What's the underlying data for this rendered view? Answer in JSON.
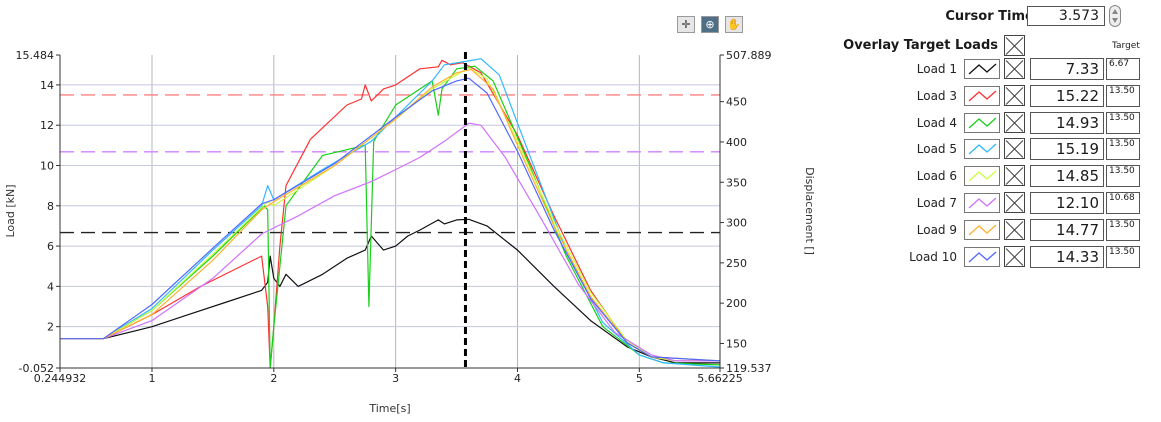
{
  "toolbar": {
    "items": [
      {
        "name": "cursor-move-tool-icon",
        "glyph": "✛"
      },
      {
        "name": "zoom-tool-icon",
        "glyph": "⊕"
      },
      {
        "name": "pan-hand-tool-icon",
        "glyph": "✋"
      }
    ]
  },
  "panel": {
    "cursor_time_label": "Cursor Time (s)",
    "cursor_time_value": "3.573",
    "overlay_label": "Overlay Target Loads",
    "target_header": "Target",
    "rows": [
      {
        "label": "Load 1",
        "value": "7.33",
        "target": "6.67",
        "color": "#111111"
      },
      {
        "label": "Load 3",
        "value": "15.22",
        "target": "13.50",
        "color": "#ff3030"
      },
      {
        "label": "Load 4",
        "value": "14.93",
        "target": "13.50",
        "color": "#18d018"
      },
      {
        "label": "Load 5",
        "value": "15.19",
        "target": "13.50",
        "color": "#30b8ff"
      },
      {
        "label": "Load 6",
        "value": "14.85",
        "target": "13.50",
        "color": "#c8ff40"
      },
      {
        "label": "Load 7",
        "value": "12.10",
        "target": "10.68",
        "color": "#d070ff"
      },
      {
        "label": "Load 9",
        "value": "14.77",
        "target": "13.50",
        "color": "#ffb030"
      },
      {
        "label": "Load 10",
        "value": "14.33",
        "target": "13.50",
        "color": "#5068ff"
      }
    ]
  },
  "chart_data": {
    "type": "line",
    "xlabel": "Time[s]",
    "ylabel": "Load [kN]",
    "y2label": "Displacement []",
    "xlim": [
      0.244932,
      5.66225
    ],
    "ylim": [
      -0.052,
      15.484
    ],
    "y2lim": [
      119.537,
      507.889
    ],
    "x_tick_labels": [
      "0.244932",
      "1",
      "2",
      "3",
      "4",
      "5",
      "5.66225"
    ],
    "x_ticks": [
      0.244932,
      1,
      2,
      3,
      4,
      5,
      5.66225
    ],
    "y_tick_labels": [
      "-0.052",
      "2",
      "4",
      "6",
      "8",
      "10",
      "12",
      "14",
      "15.484"
    ],
    "y_ticks": [
      -0.052,
      2,
      4,
      6,
      8,
      10,
      12,
      14,
      15.484
    ],
    "y2_tick_labels": [
      "119.537",
      "150",
      "200",
      "250",
      "300",
      "350",
      "400",
      "450",
      "507.889"
    ],
    "y2_ticks": [
      119.537,
      150,
      200,
      250,
      300,
      350,
      400,
      450,
      507.889
    ],
    "grid": true,
    "cursor_x": 3.573,
    "target_lines": [
      {
        "y": 6.67,
        "color": "#222222"
      },
      {
        "y": 10.68,
        "color": "#d080ff"
      },
      {
        "y": 13.5,
        "color": "#ff8080"
      }
    ],
    "series": [
      {
        "color": "#111111",
        "x": [
          0.245,
          0.6,
          1.0,
          1.3,
          1.6,
          1.9,
          1.95,
          1.97,
          2.0,
          2.05,
          2.1,
          2.2,
          2.4,
          2.6,
          2.75,
          2.8,
          2.9,
          3.0,
          3.1,
          3.2,
          3.35,
          3.4,
          3.5,
          3.6,
          3.75,
          4.0,
          4.3,
          4.6,
          4.9,
          5.1,
          5.3,
          5.66
        ],
        "y": [
          1.4,
          1.4,
          2.0,
          2.6,
          3.2,
          3.8,
          4.2,
          5.5,
          4.4,
          4.0,
          4.6,
          4.0,
          4.6,
          5.4,
          5.8,
          6.5,
          5.8,
          6.0,
          6.5,
          6.8,
          7.3,
          7.1,
          7.3,
          7.33,
          7.0,
          5.8,
          4.0,
          2.3,
          1.0,
          0.5,
          0.2,
          0.2
        ]
      },
      {
        "color": "#ff3030",
        "x": [
          0.245,
          0.6,
          1.0,
          1.4,
          1.9,
          1.95,
          1.97,
          2.0,
          2.05,
          2.1,
          2.3,
          2.6,
          2.72,
          2.75,
          2.8,
          2.9,
          3.0,
          3.2,
          3.35,
          3.38,
          3.45,
          3.55,
          3.7,
          4.0,
          4.3,
          4.6,
          4.9,
          5.1,
          5.3,
          5.66
        ],
        "y": [
          1.4,
          1.4,
          2.6,
          4.0,
          5.5,
          3.0,
          -0.05,
          2.0,
          6.0,
          9.0,
          11.3,
          13.0,
          13.3,
          14.0,
          13.2,
          13.8,
          14.0,
          14.8,
          14.9,
          15.22,
          15.0,
          15.1,
          14.6,
          11.5,
          7.5,
          3.8,
          1.2,
          0.5,
          0.3,
          0.3
        ]
      },
      {
        "color": "#18d018",
        "x": [
          0.245,
          0.6,
          1.0,
          1.5,
          1.92,
          1.95,
          1.97,
          2.0,
          2.1,
          2.4,
          2.75,
          2.78,
          2.82,
          3.0,
          3.3,
          3.35,
          3.38,
          3.5,
          3.65,
          3.8,
          4.1,
          4.4,
          4.7,
          5.0,
          5.2,
          5.66
        ],
        "y": [
          1.4,
          1.4,
          2.8,
          5.5,
          8.0,
          7.8,
          -0.05,
          2.0,
          8.0,
          10.5,
          11.0,
          3.0,
          11.2,
          13.0,
          14.2,
          12.5,
          13.8,
          14.8,
          14.93,
          14.2,
          10.0,
          5.5,
          2.0,
          0.6,
          0.2,
          0.1
        ]
      },
      {
        "color": "#30b8ff",
        "x": [
          0.245,
          0.6,
          1.0,
          1.5,
          1.9,
          1.95,
          2.0,
          2.4,
          2.8,
          3.0,
          3.2,
          3.3,
          3.4,
          3.6,
          3.7,
          3.85,
          4.1,
          4.4,
          4.7,
          5.0,
          5.2,
          5.66
        ],
        "y": [
          1.4,
          1.4,
          2.9,
          5.8,
          8.0,
          9.0,
          8.3,
          9.8,
          11.2,
          12.4,
          13.6,
          14.2,
          15.0,
          15.19,
          15.3,
          14.5,
          10.5,
          5.8,
          2.2,
          0.6,
          0.2,
          0.0
        ]
      },
      {
        "color": "#c8ff40",
        "x": [
          0.245,
          0.6,
          1.0,
          1.5,
          1.95,
          2.0,
          2.5,
          3.0,
          3.3,
          3.5,
          3.6,
          3.75,
          4.0,
          4.3,
          4.6,
          4.9,
          5.1,
          5.3,
          5.66
        ],
        "y": [
          1.4,
          1.4,
          2.8,
          5.6,
          8.2,
          8.0,
          10.0,
          12.3,
          13.8,
          14.5,
          14.85,
          14.3,
          11.2,
          7.2,
          3.7,
          1.3,
          0.5,
          0.3,
          0.3
        ]
      },
      {
        "color": "#d070ff",
        "x": [
          0.245,
          0.6,
          1.0,
          1.5,
          1.9,
          2.0,
          2.2,
          2.5,
          2.8,
          3.0,
          3.2,
          3.4,
          3.6,
          3.7,
          3.9,
          4.2,
          4.5,
          4.8,
          5.1,
          5.3,
          5.66
        ],
        "y": [
          1.4,
          1.4,
          2.3,
          4.4,
          6.6,
          6.9,
          7.5,
          8.5,
          9.2,
          9.8,
          10.4,
          11.2,
          12.1,
          12.0,
          10.4,
          7.3,
          4.1,
          1.7,
          0.6,
          0.3,
          0.3
        ]
      },
      {
        "color": "#ffb030",
        "x": [
          0.245,
          0.6,
          1.0,
          1.5,
          1.9,
          2.0,
          2.5,
          3.0,
          3.3,
          3.5,
          3.62,
          3.8,
          4.0,
          4.3,
          4.6,
          4.9,
          5.1,
          5.66
        ],
        "y": [
          1.4,
          1.4,
          2.6,
          5.3,
          7.8,
          8.2,
          10.0,
          12.3,
          13.9,
          14.6,
          14.77,
          13.8,
          11.0,
          7.0,
          3.5,
          1.2,
          0.5,
          0.3
        ]
      },
      {
        "color": "#5068ff",
        "x": [
          0.245,
          0.6,
          1.0,
          1.5,
          1.9,
          2.0,
          2.5,
          3.0,
          3.3,
          3.5,
          3.6,
          3.75,
          4.0,
          4.3,
          4.6,
          4.9,
          5.1,
          5.66
        ],
        "y": [
          1.4,
          1.4,
          3.1,
          5.9,
          8.1,
          8.3,
          10.1,
          12.4,
          13.7,
          14.2,
          14.33,
          13.6,
          10.7,
          6.8,
          3.4,
          1.2,
          0.5,
          0.3
        ]
      }
    ]
  }
}
